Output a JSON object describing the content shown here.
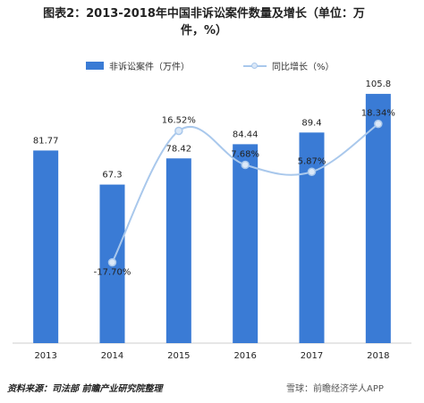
{
  "title": {
    "line1": "图表2：2013-2018年中国非诉讼案件数量及增长（单位：万",
    "line2": "件，%）"
  },
  "source": {
    "text": "资料来源：司法部 前瞻产业研究院整理"
  },
  "watermark": {
    "text": "雪球：前瞻经济学人APP"
  },
  "colors": {
    "bar": "#3a7bd5",
    "line": "#a9c8ec",
    "marker_fill": "#dbe8f7",
    "axis": "#cccccc"
  },
  "chart_data": {
    "type": "bar",
    "categories": [
      "2013",
      "2014",
      "2015",
      "2016",
      "2017",
      "2018"
    ],
    "series": [
      {
        "name": "非诉讼案件（万件）",
        "type": "bar",
        "values": [
          81.77,
          67.3,
          78.42,
          84.44,
          89.4,
          105.8
        ],
        "labels": [
          "81.77",
          "67.3",
          "78.42",
          "84.44",
          "89.4",
          "105.8"
        ]
      },
      {
        "name": "同比增长（%）",
        "type": "line",
        "values": [
          null,
          -17.7,
          16.52,
          7.68,
          5.87,
          18.34
        ],
        "labels": [
          "",
          "-17.70%",
          "16.52%",
          "7.68%",
          "5.87%",
          "18.34%"
        ]
      }
    ],
    "legend_position": "top",
    "grid": false
  }
}
